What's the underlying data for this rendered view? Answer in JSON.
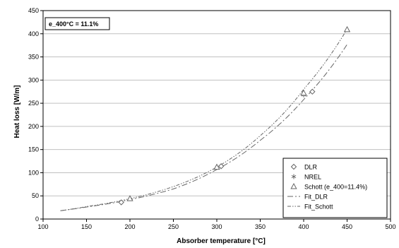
{
  "chart_data": {
    "type": "scatter",
    "title": "",
    "annotation": "e_400°C = 11.1%",
    "xlabel": "Absorber temperature [°C]",
    "ylabel": "Heat loss [W/m]",
    "xlim": [
      100,
      500
    ],
    "ylim": [
      0,
      450
    ],
    "x_ticks": [
      100,
      150,
      200,
      250,
      300,
      350,
      400,
      450,
      500
    ],
    "y_ticks": [
      0,
      50,
      100,
      150,
      200,
      250,
      300,
      350,
      400,
      450
    ],
    "grid": "horizontal",
    "legend_position": "bottom-right",
    "series": [
      {
        "name": "DLR",
        "kind": "points",
        "marker": "diamond",
        "points": [
          [
            190,
            36
          ],
          [
            305,
            114
          ],
          [
            410,
            275
          ]
        ]
      },
      {
        "name": "NREL",
        "kind": "points",
        "marker": "asterisk",
        "points": [
          [
            400,
            268
          ]
        ]
      },
      {
        "name": "Schott (e_400=11.4%)",
        "kind": "points",
        "marker": "triangle",
        "points": [
          [
            200,
            44
          ],
          [
            300,
            112
          ],
          [
            400,
            272
          ],
          [
            450,
            409
          ]
        ]
      },
      {
        "name": "Fit_DLR",
        "kind": "line",
        "dash": "long-dash-dot",
        "points": [
          [
            120,
            18
          ],
          [
            150,
            26
          ],
          [
            200,
            42
          ],
          [
            250,
            65
          ],
          [
            300,
            107
          ],
          [
            350,
            170
          ],
          [
            400,
            258
          ],
          [
            450,
            377
          ]
        ]
      },
      {
        "name": "Fit_Schott",
        "kind": "line",
        "dash": "dash-dot-dot",
        "points": [
          [
            120,
            18
          ],
          [
            150,
            27
          ],
          [
            200,
            44
          ],
          [
            250,
            70
          ],
          [
            300,
            112
          ],
          [
            350,
            180
          ],
          [
            400,
            280
          ],
          [
            450,
            410
          ]
        ]
      }
    ]
  },
  "colors": {
    "marker": "#666666",
    "fit_line": "#666666",
    "grid": "#c0c0c0",
    "axis": "#000000"
  }
}
